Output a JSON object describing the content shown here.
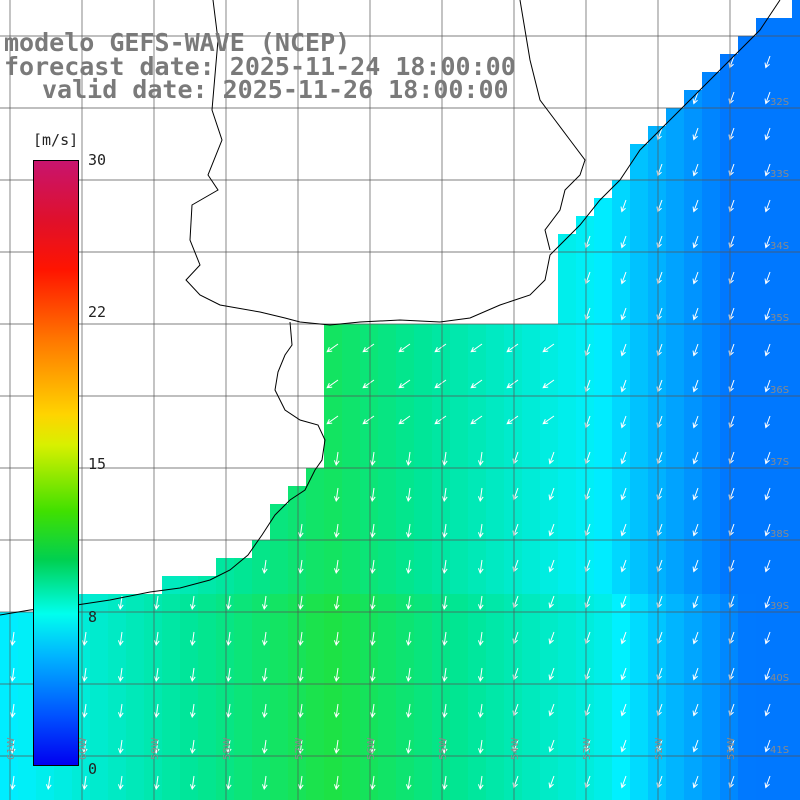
{
  "title_line1": "modelo GEFS-WAVE (NCEP)",
  "title_line2": "forecast date: 2025-11-24 18:00:00",
  "title_line3": "valid date: 2025-11-26 18:00:00",
  "colorbar": {
    "unit": "[m/s]",
    "labels": [
      "30",
      "22",
      "15",
      "8",
      "0"
    ],
    "values": [
      30,
      22,
      15,
      8,
      0
    ],
    "range": [
      0,
      30
    ]
  },
  "lat_labels": [
    "32S",
    "33S",
    "34S",
    "35S",
    "36S",
    "37S",
    "38S",
    "39S",
    "40S",
    "41S"
  ],
  "lon_labels": [
    "61W",
    "60W",
    "59W",
    "58W",
    "57W",
    "56W",
    "55W",
    "54W",
    "53W",
    "52W",
    "51W"
  ],
  "colors": {
    "land": "#ffffff",
    "coast": "#000000",
    "grid": "#555555",
    "arrow": "#ffffff",
    "text": "#7a7a7a"
  }
}
